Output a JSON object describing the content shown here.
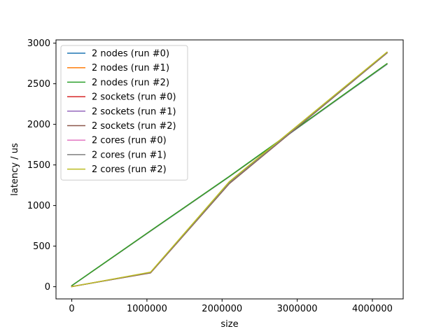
{
  "chart_data": {
    "type": "line",
    "title": "",
    "xlabel": "size",
    "ylabel": "latency / us",
    "xlim": [
      -210000,
      4410000
    ],
    "ylim": [
      -150,
      3040
    ],
    "x_ticks": [
      0,
      1000000,
      2000000,
      3000000,
      4000000
    ],
    "y_ticks": [
      0,
      500,
      1000,
      1500,
      2000,
      2500,
      3000
    ],
    "grid": false,
    "legend_placement": "top-left",
    "x": [
      0,
      1048576,
      2097152,
      4194304
    ],
    "series": [
      {
        "name": "2 nodes (run #0)",
        "color": "#1f77b4",
        "values": [
          12,
          685,
          1355,
          2740
        ]
      },
      {
        "name": "2 nodes (run #1)",
        "color": "#ff7f0e",
        "values": [
          13,
          688,
          1358,
          2745
        ]
      },
      {
        "name": "2 nodes (run #2)",
        "color": "#2ca02c",
        "values": [
          14,
          690,
          1360,
          2748
        ]
      },
      {
        "name": "2 sockets (run #0)",
        "color": "#d62728",
        "values": [
          2,
          175,
          1285,
          2885
        ]
      },
      {
        "name": "2 sockets (run #1)",
        "color": "#9467bd",
        "values": [
          2,
          172,
          1275,
          2880
        ]
      },
      {
        "name": "2 sockets (run #2)",
        "color": "#8c564b",
        "values": [
          2,
          170,
          1270,
          2878
        ]
      },
      {
        "name": "2 cores (run #0)",
        "color": "#e377c2",
        "values": [
          1,
          178,
          1290,
          2888
        ]
      },
      {
        "name": "2 cores (run #1)",
        "color": "#7f7f7f",
        "values": [
          1,
          176,
          1280,
          2883
        ]
      },
      {
        "name": "2 cores (run #2)",
        "color": "#bcbd22",
        "values": [
          1,
          180,
          1295,
          2890
        ]
      }
    ]
  }
}
